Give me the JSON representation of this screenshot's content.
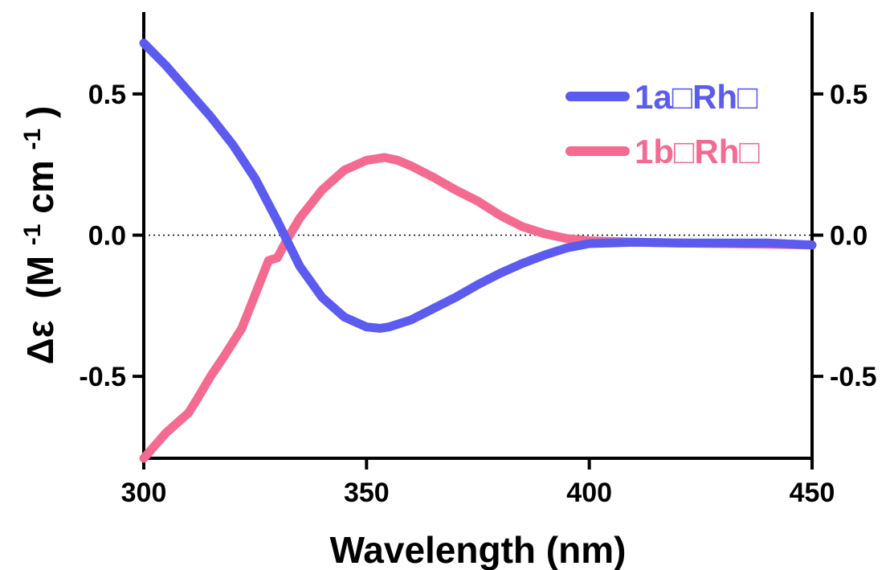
{
  "chart_data": {
    "type": "line",
    "title": "",
    "xlabel": "Wavelength (nm)",
    "ylabel_prefix": "Δε",
    "ylabel_units": "(M",
    "ylabel_exp1": "-1",
    "ylabel_mid": " cm",
    "ylabel_exp2": "-1",
    "ylabel_close": ")",
    "xlim": [
      300,
      450
    ],
    "ylim": [
      -0.79,
      0.79
    ],
    "xticks": [
      300,
      350,
      400,
      450
    ],
    "xtick_labels": [
      "300",
      "350",
      "400",
      "450"
    ],
    "yticks": [
      -0.5,
      0.0,
      0.5
    ],
    "ytick_labels": [
      "-0.5",
      "0.0",
      "0.5"
    ],
    "right_axis": true,
    "zero_line": "dotted",
    "grid": false,
    "legend_position": "top-right",
    "series": [
      {
        "name": "1a□Rh□",
        "color": "#5b5bf0",
        "x": [
          300,
          305,
          310,
          315,
          320,
          325,
          330,
          335,
          340,
          345,
          350,
          353,
          355,
          360,
          365,
          370,
          375,
          380,
          385,
          390,
          395,
          400,
          410,
          420,
          430,
          440,
          450
        ],
        "y": [
          0.68,
          0.6,
          0.51,
          0.42,
          0.32,
          0.2,
          0.05,
          -0.11,
          -0.22,
          -0.29,
          -0.325,
          -0.33,
          -0.325,
          -0.3,
          -0.26,
          -0.22,
          -0.175,
          -0.135,
          -0.1,
          -0.07,
          -0.045,
          -0.03,
          -0.025,
          -0.028,
          -0.028,
          -0.028,
          -0.035
        ]
      },
      {
        "name": "1b□Rh□",
        "color": "#f46a91",
        "x": [
          300,
          305,
          310,
          312,
          315,
          318,
          322,
          325,
          328,
          330,
          332,
          335,
          340,
          345,
          350,
          354,
          357,
          360,
          365,
          370,
          375,
          380,
          385,
          390,
          395,
          400,
          410,
          420,
          430,
          440,
          450
        ],
        "y": [
          -0.79,
          -0.7,
          -0.63,
          -0.58,
          -0.5,
          -0.43,
          -0.33,
          -0.21,
          -0.09,
          -0.08,
          -0.02,
          0.06,
          0.16,
          0.23,
          0.265,
          0.275,
          0.265,
          0.245,
          0.205,
          0.16,
          0.12,
          0.07,
          0.03,
          0.005,
          -0.012,
          -0.02,
          -0.025,
          -0.028,
          -0.03,
          -0.032,
          -0.035
        ]
      }
    ]
  }
}
